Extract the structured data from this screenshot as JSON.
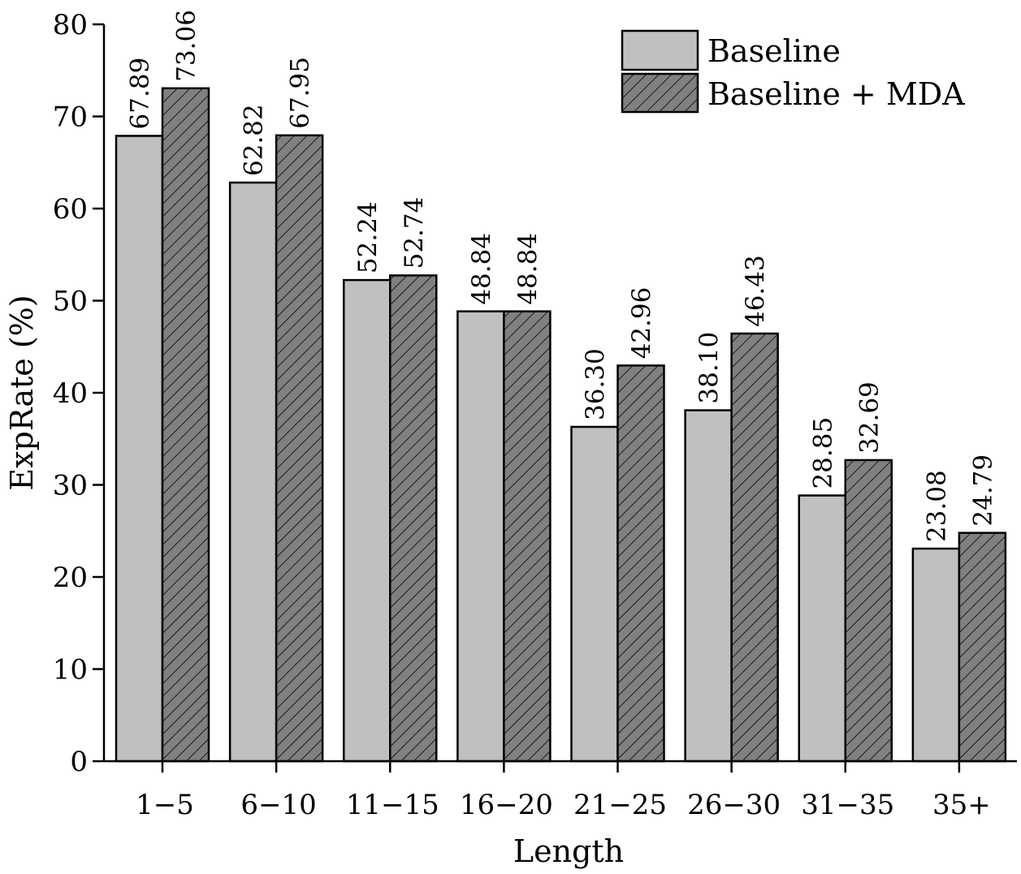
{
  "chart_data": {
    "type": "bar",
    "title": "",
    "xlabel": "Length",
    "ylabel": "ExpRate (%)",
    "ylim": [
      0,
      80
    ],
    "yticks": [
      "0",
      "10",
      "20",
      "30",
      "40",
      "50",
      "60",
      "70",
      "80"
    ],
    "categories": [
      "1−5",
      "6−10",
      "11−15",
      "16−20",
      "21−25",
      "26−30",
      "31−35",
      "35+"
    ],
    "series": [
      {
        "name": "Baseline",
        "fill": "#c0c0c0",
        "hatched": false,
        "values": [
          67.89,
          62.82,
          52.24,
          48.84,
          36.3,
          38.1,
          28.85,
          23.08
        ],
        "labels": [
          "67.89",
          "62.82",
          "52.24",
          "48.84",
          "36.30",
          "38.10",
          "28.85",
          "23.08"
        ]
      },
      {
        "name": "Baseline + MDA",
        "fill": "#808080",
        "hatched": true,
        "values": [
          73.06,
          67.95,
          52.74,
          48.84,
          42.96,
          46.43,
          32.69,
          24.79
        ],
        "labels": [
          "73.06",
          "67.95",
          "52.74",
          "48.84",
          "42.96",
          "46.43",
          "32.69",
          "24.79"
        ]
      }
    ],
    "legend_position": "top-right",
    "grid": false
  }
}
